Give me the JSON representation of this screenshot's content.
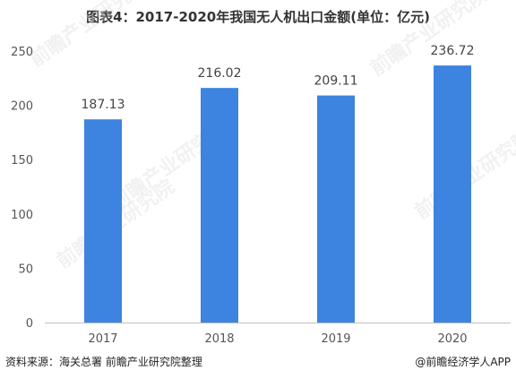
{
  "chart_data": {
    "type": "bar",
    "title": "图表4：2017-2020年我国无人机出口金额(单位：亿元)",
    "categories": [
      "2017",
      "2018",
      "2019",
      "2020"
    ],
    "values": [
      187.13,
      216.02,
      209.11,
      236.72
    ],
    "value_labels": [
      "187.13",
      "216.02",
      "209.11",
      "236.72"
    ],
    "ylim": [
      0,
      250
    ],
    "yticks": [
      0,
      50,
      100,
      150,
      200,
      250
    ],
    "bar_color": "#3d83e0",
    "grid": false,
    "legend": "none"
  },
  "footer": {
    "source": "资料来源：海关总署 前瞻产业研究院整理",
    "credit": "@前瞻经济学人APP"
  },
  "watermark": {
    "text": "前瞻产业研究院"
  }
}
